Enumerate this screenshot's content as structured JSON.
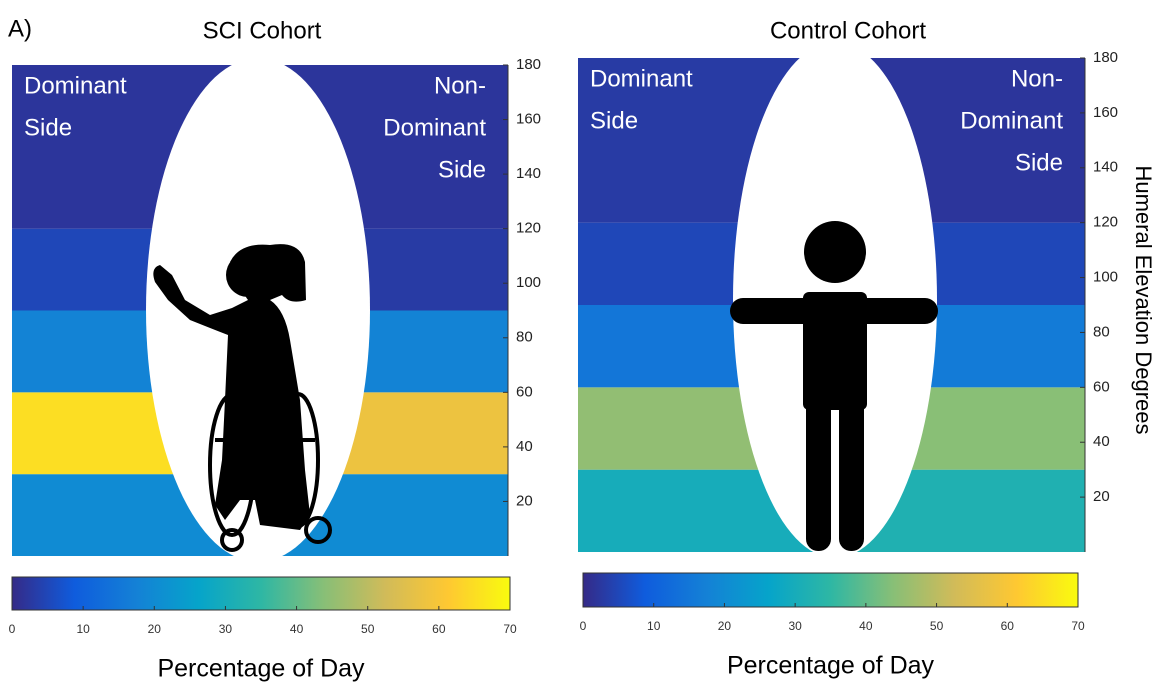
{
  "panel_label": "A)",
  "chart_data": [
    {
      "type": "heatmap",
      "title": "SCI Cohort",
      "bins": [
        0,
        30,
        60,
        90,
        120,
        180
      ],
      "columns": [
        {
          "label": [
            "Dominant",
            "Side"
          ],
          "values": [
            20,
            65,
            18,
            5,
            2
          ]
        },
        {
          "label": [
            "Non-",
            "Dominant",
            "Side"
          ],
          "values": [
            20,
            58,
            18,
            3,
            2
          ]
        }
      ],
      "ylim": [
        0,
        180
      ],
      "yticks": [
        20,
        40,
        60,
        80,
        100,
        120,
        140,
        160,
        180
      ],
      "clim": [
        0,
        70
      ],
      "cticks": [
        0,
        10,
        20,
        30,
        40,
        50,
        60,
        70
      ],
      "clabel": "Percentage of Day",
      "colormap": [
        "#352a87",
        "#0f5cdd",
        "#1481d6",
        "#06a4ca",
        "#2eb7a4",
        "#87bf77",
        "#d1bb59",
        "#fec832",
        "#f9fb0e"
      ]
    },
    {
      "type": "heatmap",
      "title": "Control Cohort",
      "bins": [
        0,
        30,
        60,
        90,
        120,
        180
      ],
      "columns": [
        {
          "label": [
            "Dominant",
            "Side"
          ],
          "values": [
            30,
            45,
            15,
            5,
            3
          ]
        },
        {
          "label": [
            "Non-",
            "Dominant",
            "Side"
          ],
          "values": [
            32,
            44,
            16,
            5,
            2
          ]
        }
      ],
      "ylim": [
        0,
        180
      ],
      "yticks": [
        20,
        40,
        60,
        80,
        100,
        120,
        140,
        160,
        180
      ],
      "ylabel": "Humeral Elevation Degrees",
      "clim": [
        0,
        70
      ],
      "cticks": [
        0,
        10,
        20,
        30,
        40,
        50,
        60,
        70
      ],
      "clabel": "Percentage of Day",
      "colormap": [
        "#352a87",
        "#0f5cdd",
        "#1481d6",
        "#06a4ca",
        "#2eb7a4",
        "#87bf77",
        "#d1bb59",
        "#fec832",
        "#f9fb0e"
      ]
    }
  ]
}
